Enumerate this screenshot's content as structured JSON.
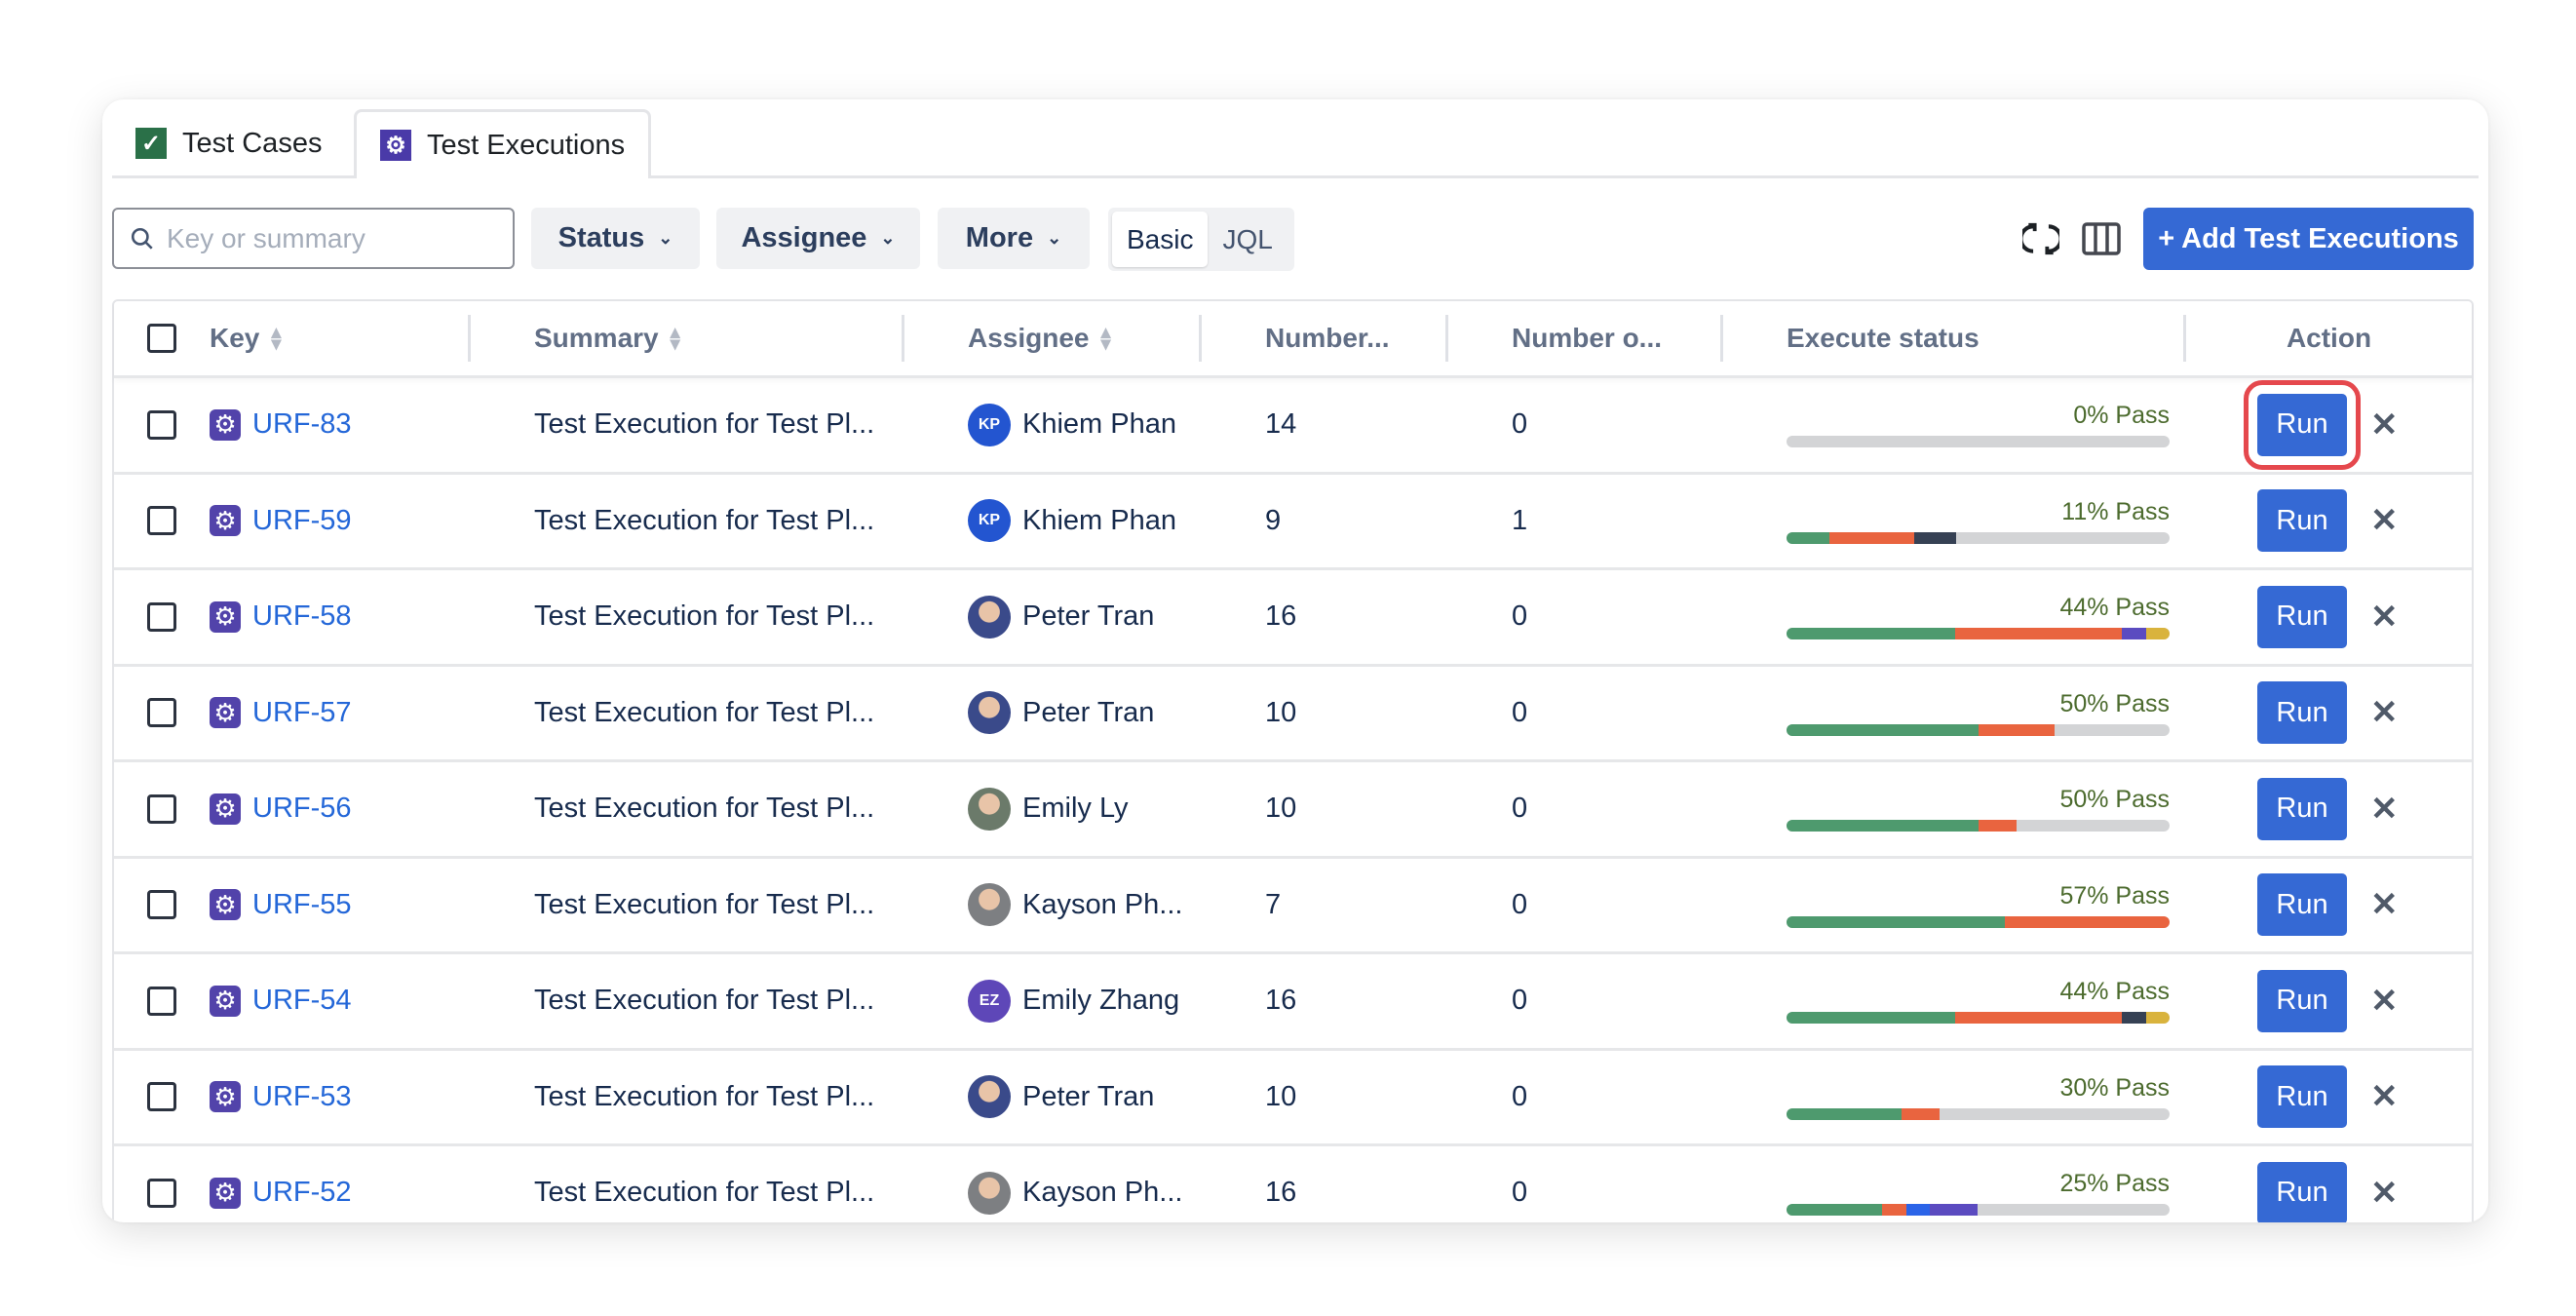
{
  "tabs": [
    {
      "label": "Test Cases",
      "icon": "check-icon",
      "color": "#2a7048"
    },
    {
      "label": "Test Executions",
      "icon": "gear-icon",
      "color": "#4a3aa8"
    }
  ],
  "toolbar": {
    "search_placeholder": "Key or summary",
    "search_value": "",
    "status": "Status",
    "assignee": "Assignee",
    "more": "More",
    "basic": "Basic",
    "jql": "JQL",
    "add": "+ Add Test Executions"
  },
  "columns": {
    "key": "Key",
    "summary": "Summary",
    "assignee": "Assignee",
    "number1": "Number...",
    "number2": "Number o...",
    "execute": "Execute status",
    "action": "Action"
  },
  "colors": {
    "pass": "#4e9a6e",
    "fail": "#e9643f",
    "blocked": "#364154",
    "unknown": "#d9b33d",
    "purple": "#5b4bc0",
    "blue": "#2b64e8",
    "empty": "#d3d4d6"
  },
  "run_label": "Run",
  "rows": [
    {
      "key": "URF-83",
      "summary": "Test Execution for Test Pl...",
      "assignee": "Khiem Phan",
      "initials": "KP",
      "avatar": "#2355d0",
      "n1": "14",
      "n2": "0",
      "pass": "0% Pass",
      "segments": []
    },
    {
      "key": "URF-59",
      "summary": "Test Execution for Test Pl...",
      "assignee": "Khiem Phan",
      "initials": "KP",
      "avatar": "#2355d0",
      "n1": "9",
      "n2": "1",
      "pass": "11% Pass",
      "segments": [
        [
          "pass",
          11.1
        ],
        [
          "fail",
          22.2
        ],
        [
          "blocked",
          11.1
        ]
      ]
    },
    {
      "key": "URF-58",
      "summary": "Test Execution for Test Pl...",
      "assignee": "Peter Tran",
      "initials": "",
      "avatar": "#3a4a8a",
      "n1": "16",
      "n2": "0",
      "pass": "44% Pass",
      "segments": [
        [
          "pass",
          44
        ],
        [
          "fail",
          43.5
        ],
        [
          "purple",
          6.5
        ],
        [
          "unknown",
          6
        ]
      ]
    },
    {
      "key": "URF-57",
      "summary": "Test Execution for Test Pl...",
      "assignee": "Peter Tran",
      "initials": "",
      "avatar": "#3a4a8a",
      "n1": "10",
      "n2": "0",
      "pass": "50% Pass",
      "segments": [
        [
          "pass",
          50
        ],
        [
          "fail",
          20
        ]
      ]
    },
    {
      "key": "URF-56",
      "summary": "Test Execution for Test Pl...",
      "assignee": "Emily Ly",
      "initials": "",
      "avatar": "#6b7a6a",
      "n1": "10",
      "n2": "0",
      "pass": "50% Pass",
      "segments": [
        [
          "pass",
          50
        ],
        [
          "fail",
          10
        ]
      ]
    },
    {
      "key": "URF-55",
      "summary": "Test Execution for Test Pl...",
      "assignee": "Kayson Ph...",
      "initials": "",
      "avatar": "#7d7f82",
      "n1": "7",
      "n2": "0",
      "pass": "57% Pass",
      "segments": [
        [
          "pass",
          57.1
        ],
        [
          "fail",
          42.9
        ]
      ]
    },
    {
      "key": "URF-54",
      "summary": "Test Execution for Test Pl...",
      "assignee": "Emily Zhang",
      "initials": "EZ",
      "avatar": "#5e47b8",
      "n1": "16",
      "n2": "0",
      "pass": "44% Pass",
      "segments": [
        [
          "pass",
          44
        ],
        [
          "fail",
          43.5
        ],
        [
          "blocked",
          6.5
        ],
        [
          "unknown",
          6
        ]
      ]
    },
    {
      "key": "URF-53",
      "summary": "Test Execution for Test Pl...",
      "assignee": "Peter Tran",
      "initials": "",
      "avatar": "#3a4a8a",
      "n1": "10",
      "n2": "0",
      "pass": "30% Pass",
      "segments": [
        [
          "pass",
          30
        ],
        [
          "fail",
          10
        ]
      ]
    },
    {
      "key": "URF-52",
      "summary": "Test Execution for Test Pl...",
      "assignee": "Kayson Ph...",
      "initials": "",
      "avatar": "#7d7f82",
      "n1": "16",
      "n2": "0",
      "pass": "25% Pass",
      "segments": [
        [
          "pass",
          25
        ],
        [
          "fail",
          6.3
        ],
        [
          "blue",
          6.2
        ],
        [
          "purple",
          12.5
        ]
      ]
    }
  ]
}
